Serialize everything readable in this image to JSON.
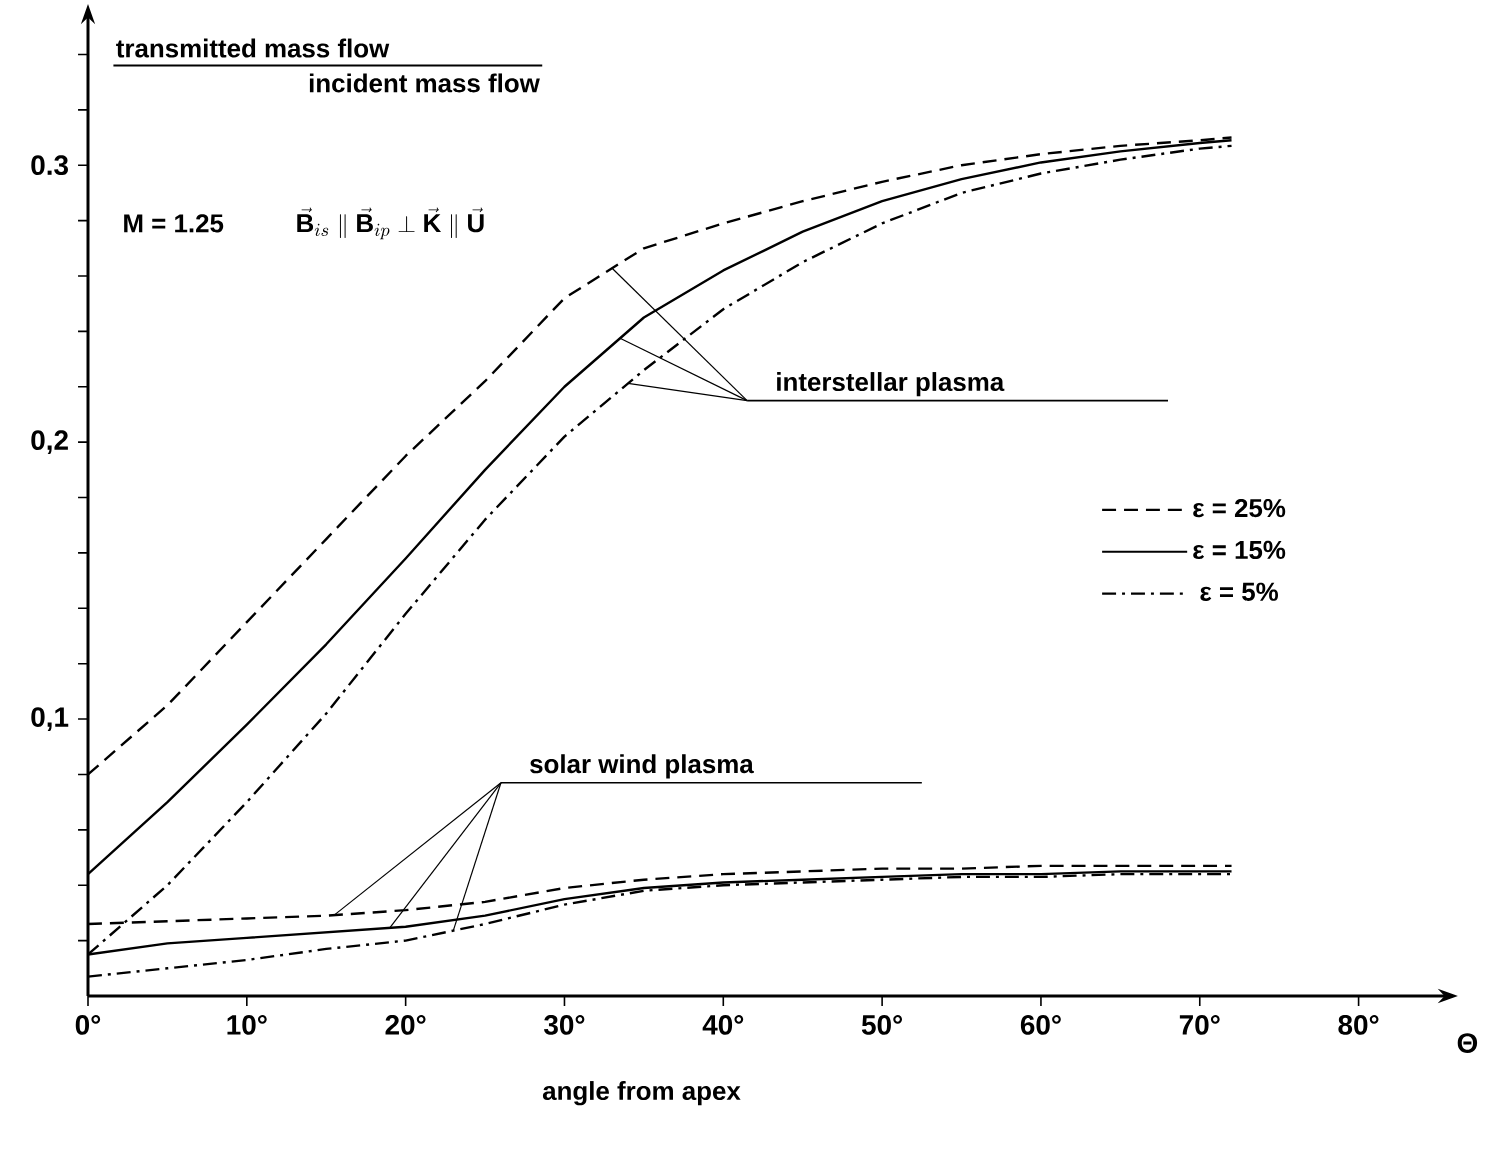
{
  "chart_data": {
    "type": "line",
    "title": "transmitted mass flow",
    "subtitle": "incident mass flow",
    "xlabel": "angle from apex",
    "x": [
      0,
      5,
      10,
      15,
      20,
      25,
      30,
      35,
      40,
      45,
      50,
      55,
      60,
      65,
      70,
      72
    ],
    "series": [
      {
        "name": "ε = 25%",
        "color": "#000000",
        "line_style": "dashed",
        "values": [
          0.08,
          0.105,
          0.135,
          0.165,
          0.195,
          0.222,
          0.252,
          0.27,
          0.279,
          0.287,
          0.294,
          0.3,
          0.304,
          0.307,
          0.309,
          0.31
        ]
      },
      {
        "name": "ε = 15%",
        "color": "#000000",
        "line_style": "solid",
        "values": [
          0.044,
          0.07,
          0.098,
          0.127,
          0.158,
          0.19,
          0.22,
          0.245,
          0.262,
          0.276,
          0.287,
          0.295,
          0.301,
          0.305,
          0.308,
          0.309
        ]
      },
      {
        "name": "ε =  5%",
        "color": "#000000",
        "line_style": "dashdot",
        "values": [
          0.015,
          0.04,
          0.07,
          0.102,
          0.138,
          0.172,
          0.202,
          0.226,
          0.248,
          0.265,
          0.279,
          0.29,
          0.297,
          0.302,
          0.306,
          0.307
        ]
      },
      {
        "color": "#000000",
        "line_style": "dashed",
        "values": [
          0.026,
          0.027,
          0.028,
          0.029,
          0.031,
          0.034,
          0.039,
          0.042,
          0.044,
          0.045,
          0.046,
          0.046,
          0.047,
          0.047,
          0.047,
          0.047
        ]
      },
      {
        "color": "#000000",
        "line_style": "solid",
        "values": [
          0.015,
          0.019,
          0.021,
          0.023,
          0.025,
          0.029,
          0.035,
          0.039,
          0.041,
          0.042,
          0.043,
          0.044,
          0.044,
          0.045,
          0.045,
          0.045
        ]
      },
      {
        "color": "#000000",
        "line_style": "dashdot",
        "values": [
          0.007,
          0.01,
          0.013,
          0.017,
          0.02,
          0.026,
          0.033,
          0.038,
          0.04,
          0.041,
          0.042,
          0.043,
          0.043,
          0.044,
          0.044,
          0.044
        ]
      }
    ],
    "xlim": [
      0,
      85
    ],
    "ylim": [
      0,
      0.351
    ],
    "xticks": [
      {
        "value": 0,
        "label": "0°"
      },
      {
        "value": 10,
        "label": "10°"
      },
      {
        "value": 20,
        "label": "20°"
      },
      {
        "value": 30,
        "label": "30°"
      },
      {
        "value": 40,
        "label": "40°"
      },
      {
        "value": 50,
        "label": "50°"
      },
      {
        "value": 60,
        "label": "60°"
      },
      {
        "value": 70,
        "label": "70°"
      },
      {
        "value": 80,
        "label": "80°"
      }
    ],
    "yticks": [
      {
        "value": 0.02,
        "label": null
      },
      {
        "value": 0.04,
        "label": null
      },
      {
        "value": 0.06,
        "label": null
      },
      {
        "value": 0.08,
        "label": null
      },
      {
        "value": 0.1,
        "label": "0,1"
      },
      {
        "value": 0.12,
        "label": null
      },
      {
        "value": 0.14,
        "label": null
      },
      {
        "value": 0.16,
        "label": null
      },
      {
        "value": 0.18,
        "label": null
      },
      {
        "value": 0.2,
        "label": "0,2"
      },
      {
        "value": 0.22,
        "label": null
      },
      {
        "value": 0.24,
        "label": null
      },
      {
        "value": 0.26,
        "label": null
      },
      {
        "value": 0.28,
        "label": null
      },
      {
        "value": 0.3,
        "label": "0.3"
      },
      {
        "value": 0.32,
        "label": null
      },
      {
        "value": 0.34,
        "label": null
      }
    ],
    "annotations": [
      {
        "text": "interstellar plasma",
        "x": 33.5,
        "y": 0.238
      },
      {
        "text": "solar wind plasma",
        "x": 19.5,
        "y": 0.025
      },
      "M = 1.25",
      "\\vec{\\mathbf{B}}_{is} \\parallel \\vec{\\mathbf{B}}_{ip} \\perp \\vec{\\mathbf{K}} \\parallel \\vec{\\mathbf{U}}",
      "Θ"
    ],
    "legend": "right",
    "marker": "none"
  }
}
